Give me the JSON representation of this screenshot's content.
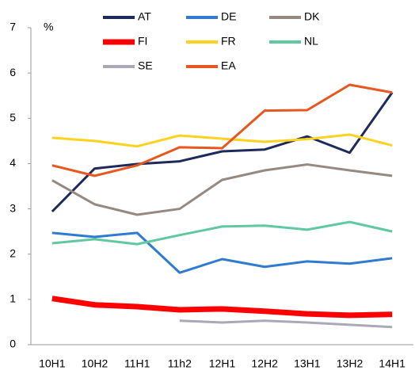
{
  "chart_data": {
    "type": "line",
    "y_label": "%",
    "categories": [
      "10H1",
      "10H2",
      "11H1",
      "11h2",
      "12H1",
      "12H2",
      "13H1",
      "13H2",
      "14H1"
    ],
    "ylim": [
      0,
      7
    ],
    "yticks": [
      0,
      1,
      2,
      3,
      4,
      5,
      6,
      7
    ],
    "series": [
      {
        "name": "AT",
        "color": "#1f2a5c",
        "values": [
          2.94,
          3.89,
          3.99,
          4.05,
          4.27,
          4.31,
          4.6,
          4.24,
          5.57
        ]
      },
      {
        "name": "DE",
        "color": "#2e7bd1",
        "values": [
          2.47,
          2.38,
          2.47,
          1.59,
          1.89,
          1.72,
          1.84,
          1.79,
          1.91
        ]
      },
      {
        "name": "DK",
        "color": "#968a80",
        "values": [
          3.63,
          3.1,
          2.87,
          3.0,
          3.64,
          3.85,
          3.98,
          3.85,
          3.73
        ]
      },
      {
        "name": "FI",
        "color": "#ff0000",
        "values": [
          1.02,
          0.88,
          0.84,
          0.77,
          0.79,
          0.74,
          0.68,
          0.65,
          0.67
        ]
      },
      {
        "name": "FR",
        "color": "#ffd21f",
        "values": [
          4.57,
          4.5,
          4.38,
          4.62,
          4.55,
          4.48,
          4.54,
          4.64,
          4.4
        ]
      },
      {
        "name": "NL",
        "color": "#5fc9a0",
        "values": [
          2.24,
          2.33,
          2.22,
          2.42,
          2.61,
          2.63,
          2.54,
          2.71,
          2.5
        ]
      },
      {
        "name": "SE",
        "color": "#a9a9b8",
        "values": [
          null,
          null,
          null,
          0.53,
          0.49,
          0.53,
          0.49,
          0.44,
          0.39
        ]
      },
      {
        "name": "EA",
        "color": "#e8571f",
        "values": [
          3.96,
          3.73,
          3.96,
          4.36,
          4.34,
          5.17,
          5.18,
          5.74,
          5.57
        ]
      }
    ]
  }
}
